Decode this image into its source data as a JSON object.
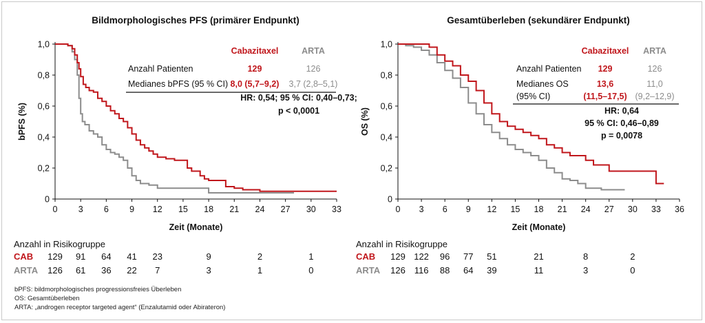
{
  "colors": {
    "cab": "#c0161b",
    "arta": "#8c8c8c",
    "axis": "#111111",
    "text": "#111111"
  },
  "chart_data": [
    {
      "type": "line",
      "title": "Bildmorphologisches PFS (primärer Endpunkt)",
      "xlabel": "Zeit (Monate)",
      "ylabel": "bPFS (%)",
      "xlim": [
        0,
        33
      ],
      "ylim": [
        0,
        1
      ],
      "xticks": [
        "0",
        "3",
        "6",
        "9",
        "12",
        "15",
        "18",
        "21",
        "24",
        "27",
        "30",
        "33"
      ],
      "yticks": [
        "0",
        "0,2",
        "0,4",
        "0,6",
        "0,8",
        "1,0"
      ],
      "series": [
        {
          "name": "Cabazitaxel",
          "color": "#c0161b",
          "x": [
            0,
            1.5,
            2,
            2.3,
            2.6,
            2.8,
            3.0,
            3.3,
            3.6,
            4.0,
            4.5,
            5.0,
            5.5,
            6.0,
            6.5,
            7.0,
            7.5,
            8.0,
            8.5,
            9.0,
            9.5,
            10.0,
            10.5,
            11.0,
            11.5,
            12.0,
            13.0,
            14.0,
            15.0,
            15.5,
            16.0,
            17.0,
            17.5,
            18.0,
            19.0,
            20.0,
            21.0,
            22.0,
            23.0,
            24.0,
            27.0,
            30.0,
            33.0
          ],
          "y": [
            1.0,
            0.99,
            0.97,
            0.93,
            0.88,
            0.84,
            0.79,
            0.74,
            0.72,
            0.7,
            0.69,
            0.65,
            0.63,
            0.6,
            0.57,
            0.55,
            0.52,
            0.5,
            0.46,
            0.42,
            0.38,
            0.35,
            0.33,
            0.31,
            0.29,
            0.27,
            0.26,
            0.25,
            0.25,
            0.2,
            0.18,
            0.15,
            0.13,
            0.12,
            0.12,
            0.08,
            0.07,
            0.06,
            0.06,
            0.05,
            0.05,
            0.05,
            0.05
          ]
        },
        {
          "name": "ARTA",
          "color": "#8c8c8c",
          "x": [
            0,
            1.5,
            2.0,
            2.3,
            2.6,
            2.8,
            3.0,
            3.2,
            3.5,
            4.0,
            4.5,
            5.0,
            5.5,
            6.0,
            6.5,
            7.0,
            7.5,
            8.0,
            8.5,
            9.0,
            9.5,
            10.0,
            11.0,
            12.0,
            14.0,
            16.0,
            18.0,
            20.0,
            24.0,
            28.0
          ],
          "y": [
            1.0,
            0.99,
            0.95,
            0.9,
            0.8,
            0.65,
            0.55,
            0.5,
            0.48,
            0.44,
            0.42,
            0.4,
            0.35,
            0.32,
            0.3,
            0.29,
            0.27,
            0.25,
            0.2,
            0.15,
            0.12,
            0.1,
            0.09,
            0.07,
            0.07,
            0.07,
            0.04,
            0.04,
            0.04,
            0.04
          ]
        }
      ],
      "legend_headers": [
        "Cabazitaxel",
        "ARTA"
      ],
      "table_rows": [
        {
          "label": "Anzahl Patienten",
          "cab": "129",
          "arta": "126"
        },
        {
          "label": "Medianes bPFS (95 % CI)",
          "cab": "8,0 (5,7–9,2)",
          "arta": "3,7 (2,8–5,1)"
        }
      ],
      "stats": [
        "HR: 0,54; 95 % CI: 0,40–0,73;",
        "p < 0,0001"
      ],
      "risk": {
        "title": "Anzahl in Risikogruppe",
        "rows": [
          {
            "label": "CAB",
            "values": [
              "129",
              "91",
              "64",
              "41",
              "23",
              "9",
              "2",
              "1"
            ]
          },
          {
            "label": "ARTA",
            "values": [
              "126",
              "61",
              "36",
              "22",
              "7",
              "3",
              "1",
              "0"
            ]
          }
        ],
        "months": [
          0,
          3,
          6,
          9,
          12,
          18,
          24,
          30
        ]
      }
    },
    {
      "type": "line",
      "title": "Gesamtüberleben (sekundärer Endpunkt)",
      "xlabel": "Zeit (Monate)",
      "ylabel": "OS (%)",
      "xlim": [
        0,
        36
      ],
      "ylim": [
        0,
        1
      ],
      "xticks": [
        "0",
        "3",
        "6",
        "9",
        "12",
        "15",
        "18",
        "21",
        "24",
        "27",
        "30",
        "33",
        "36"
      ],
      "yticks": [
        "0",
        "0,2",
        "0,4",
        "0,6",
        "0,8",
        "1,0"
      ],
      "series": [
        {
          "name": "Cabazitaxel",
          "color": "#c0161b",
          "x": [
            0,
            1,
            2,
            3,
            4,
            5,
            6,
            7,
            8,
            9,
            10,
            11,
            12,
            13,
            14,
            15,
            16,
            17,
            18,
            19,
            20,
            21,
            22,
            23,
            24,
            25,
            27,
            30,
            32,
            33,
            34
          ],
          "y": [
            1.0,
            1.0,
            1.0,
            1.0,
            0.98,
            0.93,
            0.89,
            0.86,
            0.8,
            0.76,
            0.7,
            0.62,
            0.55,
            0.5,
            0.47,
            0.45,
            0.43,
            0.41,
            0.39,
            0.35,
            0.33,
            0.3,
            0.28,
            0.28,
            0.25,
            0.22,
            0.18,
            0.18,
            0.18,
            0.1,
            0.1
          ]
        },
        {
          "name": "ARTA",
          "color": "#8c8c8c",
          "x": [
            0,
            1,
            2,
            3,
            4,
            5,
            6,
            7,
            8,
            9,
            10,
            11,
            12,
            13,
            14,
            15,
            16,
            17,
            18,
            19,
            20,
            21,
            22,
            23,
            24,
            25,
            26,
            27,
            29
          ],
          "y": [
            1.0,
            0.99,
            0.98,
            0.96,
            0.93,
            0.88,
            0.83,
            0.78,
            0.72,
            0.62,
            0.55,
            0.48,
            0.43,
            0.39,
            0.35,
            0.32,
            0.3,
            0.28,
            0.25,
            0.2,
            0.17,
            0.13,
            0.12,
            0.1,
            0.07,
            0.07,
            0.06,
            0.06,
            0.06
          ]
        }
      ],
      "legend_headers": [
        "Cabazitaxel",
        "ARTA"
      ],
      "table_rows": [
        {
          "label": "Anzahl Patienten",
          "cab": "129",
          "arta": "126"
        },
        {
          "label": "Medianes OS",
          "label2": "(95% CI)",
          "cab": "13,6",
          "cab2": "(11,5–17,5)",
          "arta": "11,0",
          "arta2": "(9,2–12,9)"
        }
      ],
      "stats": [
        "HR: 0,64",
        "95 % CI: 0,46–0,89",
        "p = 0,0078"
      ],
      "risk": {
        "title": "Anzahl in Risikogruppe",
        "rows": [
          {
            "label": "CAB",
            "values": [
              "129",
              "122",
              "96",
              "77",
              "51",
              "21",
              "8",
              "2"
            ]
          },
          {
            "label": "ARTA",
            "values": [
              "126",
              "116",
              "88",
              "64",
              "39",
              "11",
              "3",
              "0"
            ]
          }
        ],
        "months": [
          0,
          3,
          6,
          9,
          12,
          18,
          24,
          30
        ]
      }
    }
  ],
  "footnotes": [
    "bPFS: bildmorphologisches progressionsfreies Überleben",
    "OS: Gesamtüberleben",
    "ARTA: „androgen receptor targeted agent“ (Enzalutamid oder Abirateron)"
  ]
}
